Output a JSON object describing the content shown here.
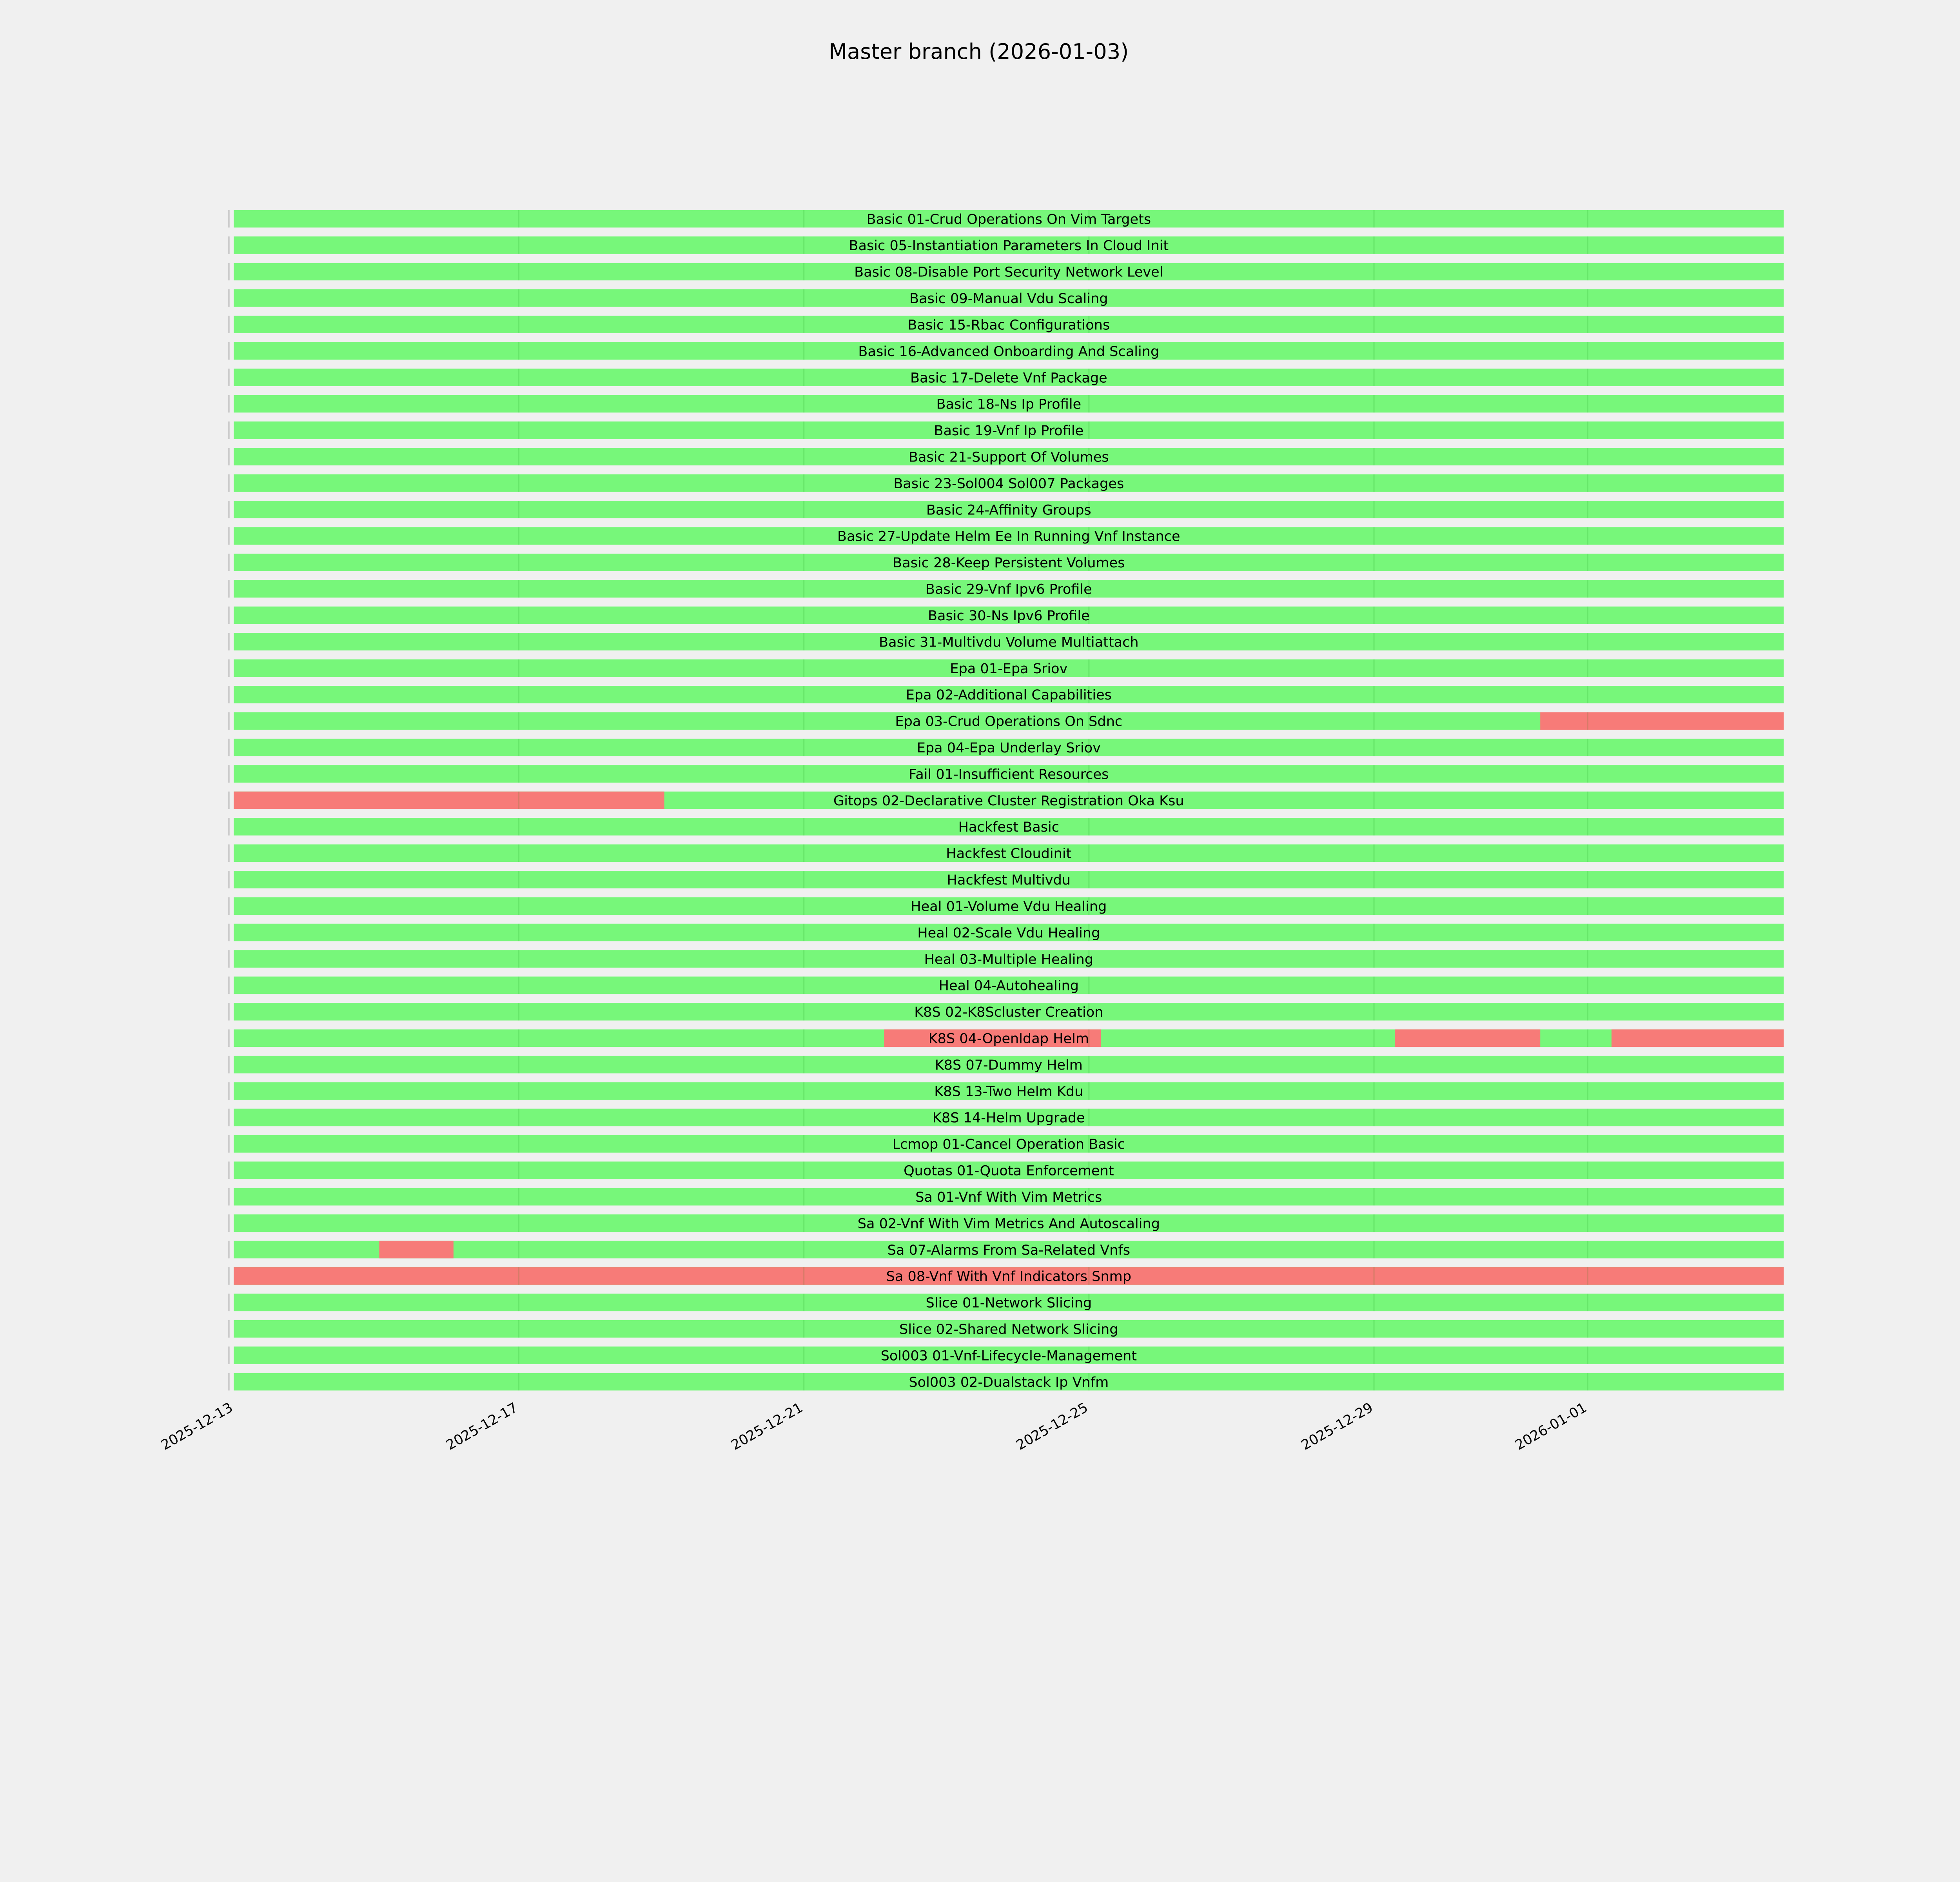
{
  "chart_data": {
    "type": "timeline",
    "title": "Master branch (2026-01-03)",
    "xlabel": "",
    "ylabel": "",
    "x_range": [
      "2025-12-13T00:00",
      "2026-01-03T18:00"
    ],
    "x_ticks": [
      "2025-12-13",
      "2025-12-17",
      "2025-12-21",
      "2025-12-25",
      "2025-12-29",
      "2026-01-01"
    ],
    "status_colors": {
      "pass": "#77f77a",
      "fail": "#f77b78"
    },
    "legend": "none",
    "grid": false,
    "rows": [
      {
        "name": "Basic 01-Crud Operations On Vim Targets",
        "fail": []
      },
      {
        "name": "Basic 05-Instantiation Parameters In Cloud Init",
        "fail": []
      },
      {
        "name": "Basic 08-Disable Port Security Network Level",
        "fail": []
      },
      {
        "name": "Basic 09-Manual Vdu Scaling",
        "fail": []
      },
      {
        "name": "Basic 15-Rbac Configurations",
        "fail": []
      },
      {
        "name": "Basic 16-Advanced Onboarding And Scaling",
        "fail": []
      },
      {
        "name": "Basic 17-Delete Vnf Package",
        "fail": []
      },
      {
        "name": "Basic 18-Ns Ip Profile",
        "fail": []
      },
      {
        "name": "Basic 19-Vnf Ip Profile",
        "fail": []
      },
      {
        "name": "Basic 21-Support Of Volumes",
        "fail": []
      },
      {
        "name": "Basic 23-Sol004 Sol007 Packages",
        "fail": []
      },
      {
        "name": "Basic 24-Affinity Groups",
        "fail": []
      },
      {
        "name": "Basic 27-Update Helm Ee In Running Vnf Instance",
        "fail": []
      },
      {
        "name": "Basic 28-Keep Persistent Volumes",
        "fail": []
      },
      {
        "name": "Basic 29-Vnf Ipv6 Profile",
        "fail": []
      },
      {
        "name": "Basic 30-Ns Ipv6 Profile",
        "fail": []
      },
      {
        "name": "Basic 31-Multivdu Volume Multiattach",
        "fail": []
      },
      {
        "name": "Epa 01-Epa Sriov",
        "fail": []
      },
      {
        "name": "Epa 02-Additional Capabilities",
        "fail": []
      },
      {
        "name": "Epa 03-Crud Operations On Sdnc",
        "fail": [
          [
            "2025-12-31T08:00",
            "2026-01-03T18:00"
          ]
        ]
      },
      {
        "name": "Epa 04-Epa Underlay Sriov",
        "fail": []
      },
      {
        "name": "Fail 01-Insufficient Resources",
        "fail": []
      },
      {
        "name": "Gitops 02-Declarative Cluster Registration Oka Ksu",
        "fail": [
          [
            "2025-12-13T00:00",
            "2025-12-19T01:00"
          ]
        ]
      },
      {
        "name": "Hackfest Basic",
        "fail": []
      },
      {
        "name": "Hackfest Cloudinit",
        "fail": []
      },
      {
        "name": "Hackfest Multivdu",
        "fail": []
      },
      {
        "name": "Heal 01-Volume Vdu Healing",
        "fail": []
      },
      {
        "name": "Heal 02-Scale Vdu Healing",
        "fail": []
      },
      {
        "name": "Heal 03-Multiple Healing",
        "fail": []
      },
      {
        "name": "Heal 04-Autohealing",
        "fail": []
      },
      {
        "name": "K8S 02-K8Scluster Creation",
        "fail": []
      },
      {
        "name": "K8S 04-Openldap Helm",
        "fail": [
          [
            "2025-12-22T03:00",
            "2025-12-25T04:00"
          ],
          [
            "2025-12-29T07:00",
            "2025-12-31T08:00"
          ],
          [
            "2026-01-01T08:00",
            "2026-01-03T18:00"
          ]
        ]
      },
      {
        "name": "K8S 07-Dummy Helm",
        "fail": []
      },
      {
        "name": "K8S 13-Two Helm Kdu",
        "fail": []
      },
      {
        "name": "K8S 14-Helm Upgrade",
        "fail": []
      },
      {
        "name": "Lcmop 01-Cancel Operation Basic",
        "fail": []
      },
      {
        "name": "Quotas 01-Quota Enforcement",
        "fail": []
      },
      {
        "name": "Sa 01-Vnf With Vim Metrics",
        "fail": []
      },
      {
        "name": "Sa 02-Vnf With Vim Metrics And Autoscaling",
        "fail": []
      },
      {
        "name": "Sa 07-Alarms From Sa-Related Vnfs",
        "fail": [
          [
            "2025-12-15T01:00",
            "2025-12-16T02:00"
          ]
        ]
      },
      {
        "name": "Sa 08-Vnf With Vnf Indicators Snmp",
        "fail": [
          [
            "2025-12-13T00:00",
            "2026-01-03T18:00"
          ]
        ]
      },
      {
        "name": "Slice 01-Network Slicing",
        "fail": []
      },
      {
        "name": "Slice 02-Shared Network Slicing",
        "fail": []
      },
      {
        "name": "Sol003 01-Vnf-Lifecycle-Management",
        "fail": []
      },
      {
        "name": "Sol003 02-Dualstack Ip Vnfm",
        "fail": []
      }
    ]
  }
}
